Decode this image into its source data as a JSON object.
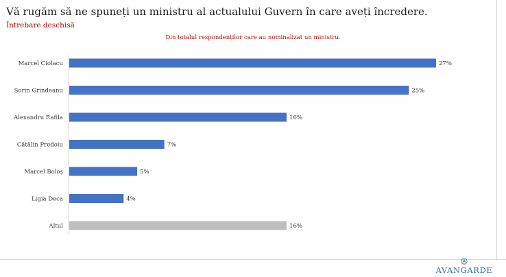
{
  "header": {
    "title": "Vă rugăm să ne spuneți un ministru al actualului Guvern în care aveți încredere.",
    "subtitle": "Întrebare deschisă"
  },
  "brand": {
    "logo_text": "AVANGARDE",
    "logo_color": "#2f6f9f"
  },
  "chart_data": {
    "type": "bar",
    "orientation": "horizontal",
    "title": "",
    "note": "Din totalul respondenților care au nominalizat un ministru.",
    "categories": [
      "Marcel Ciolacu",
      "Sorin Grindeanu",
      "Alexandru Rafila",
      "Cătălin Predoiu",
      "Marcel Boloș",
      "Ligia Deca",
      "Altul"
    ],
    "values": [
      27,
      25,
      16,
      7,
      5,
      4,
      16
    ],
    "value_labels": [
      "27%",
      "25%",
      "16%",
      "7%",
      "5%",
      "4%",
      "16%"
    ],
    "unit": "%",
    "colors": [
      "#4472c4",
      "#4472c4",
      "#4472c4",
      "#4472c4",
      "#4472c4",
      "#4472c4",
      "#bfbfbf"
    ],
    "xlim": [
      0,
      27
    ],
    "grid": false,
    "legend": "none"
  }
}
